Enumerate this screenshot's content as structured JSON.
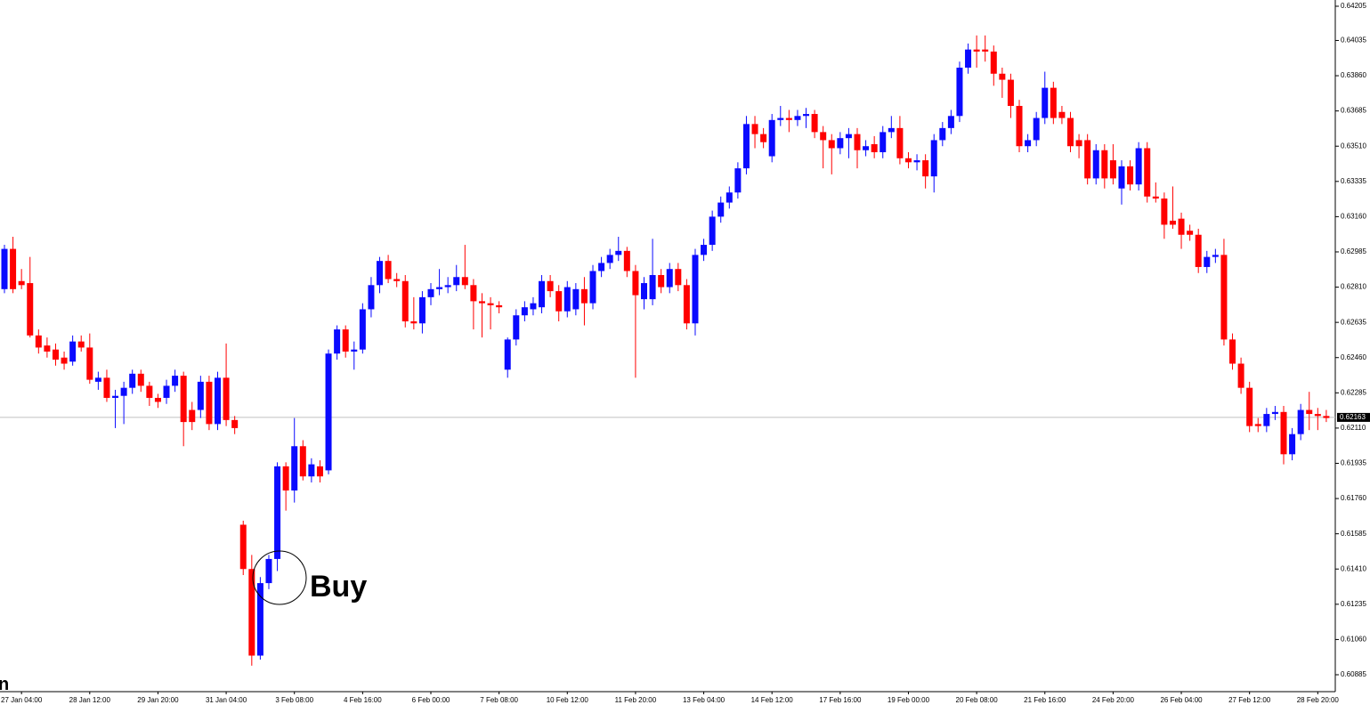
{
  "chart_data": {
    "type": "candlestick",
    "annotation": "Buy",
    "corner_text": "n",
    "bull_color": "#0a0aff",
    "bear_color": "#ff0000",
    "current_price": 0.62163,
    "ylim": [
      0.60801,
      0.64236
    ],
    "yticks": [
      0.64205,
      0.64035,
      {
        "value": 0.6386,
        "label": "0.63860"
      },
      0.63685,
      {
        "value": 0.6351,
        "label": "0.63510"
      },
      0.63335,
      {
        "value": 0.6316,
        "label": "0.63160"
      },
      0.62985,
      {
        "value": 0.6281,
        "label": "0.62810"
      },
      0.62635,
      {
        "value": 0.6246,
        "label": "0.62460"
      },
      0.62285,
      {
        "value": 0.6211,
        "label": "0.62110"
      },
      0.61935,
      {
        "value": 0.6176,
        "label": "0.61760"
      },
      0.61585,
      {
        "value": 0.6141,
        "label": "0.61410"
      },
      0.61235,
      {
        "value": 0.6106,
        "label": "0.61060"
      },
      0.60885
    ],
    "categories": [
      null,
      null,
      "27 Jan 04:00",
      null,
      null,
      null,
      null,
      null,
      null,
      null,
      "28 Jan 12:00",
      null,
      null,
      null,
      null,
      null,
      null,
      null,
      "29 Jan 20:00",
      null,
      null,
      null,
      null,
      null,
      null,
      null,
      "31 Jan 04:00",
      null,
      null,
      null,
      null,
      null,
      null,
      null,
      "3 Feb 08:00",
      null,
      null,
      null,
      null,
      null,
      null,
      null,
      "4 Feb 16:00",
      null,
      null,
      null,
      null,
      null,
      null,
      null,
      "6 Feb 00:00",
      null,
      null,
      null,
      null,
      null,
      null,
      null,
      "7 Feb 08:00",
      null,
      null,
      null,
      null,
      null,
      null,
      null,
      "10 Feb 12:00",
      null,
      null,
      null,
      null,
      null,
      null,
      null,
      "11 Feb 20:00",
      null,
      null,
      null,
      null,
      null,
      null,
      null,
      "13 Feb 04:00",
      null,
      null,
      null,
      null,
      null,
      null,
      null,
      "14 Feb 12:00",
      null,
      null,
      null,
      null,
      null,
      null,
      null,
      "17 Feb 16:00",
      null,
      null,
      null,
      null,
      null,
      null,
      null,
      "19 Feb 00:00",
      null,
      null,
      null,
      null,
      null,
      null,
      null,
      "20 Feb 08:00",
      null,
      null,
      null,
      null,
      null,
      null,
      null,
      "21 Feb 16:00",
      null,
      null,
      null,
      null,
      null,
      null,
      null,
      "24 Feb 20:00",
      null,
      null,
      null,
      null,
      null,
      null,
      null,
      "26 Feb 04:00",
      null,
      null,
      null,
      null,
      null,
      null,
      null,
      "27 Feb 12:00",
      null,
      null,
      null,
      null,
      null,
      null,
      null,
      "28 Feb 20:00",
      null
    ],
    "candles": [
      [
        0.628,
        0.6302,
        0.6278,
        0.63
      ],
      [
        0.63,
        0.6306,
        0.6278,
        0.628
      ],
      [
        0.6284,
        0.629,
        0.628,
        0.6282
      ],
      [
        0.6283,
        0.6296,
        0.6256,
        0.6257
      ],
      [
        0.6257,
        0.626,
        0.6248,
        0.6251
      ],
      [
        0.6252,
        0.6256,
        0.6246,
        0.6249
      ],
      [
        0.625,
        0.6253,
        0.6242,
        0.6245
      ],
      [
        0.6246,
        0.6249,
        0.624,
        0.6243
      ],
      [
        0.6244,
        0.6257,
        0.6242,
        0.6254
      ],
      [
        0.6254,
        0.6257,
        0.6249,
        0.6251
      ],
      [
        0.6251,
        0.6258,
        0.6233,
        0.6235
      ],
      [
        0.6234,
        0.6239,
        0.623,
        0.6236
      ],
      [
        0.6236,
        0.624,
        0.6224,
        0.6226
      ],
      [
        0.6226,
        0.623,
        0.6211,
        0.6227
      ],
      [
        0.6227,
        0.6234,
        0.6213,
        0.6231
      ],
      [
        0.6231,
        0.624,
        0.6228,
        0.6238
      ],
      [
        0.6238,
        0.624,
        0.6229,
        0.6232
      ],
      [
        0.6232,
        0.6234,
        0.6222,
        0.6226
      ],
      [
        0.6226,
        0.6228,
        0.6221,
        0.6224
      ],
      [
        0.6226,
        0.6235,
        0.6223,
        0.6232
      ],
      [
        0.6232,
        0.624,
        0.6229,
        0.6237
      ],
      [
        0.6237,
        0.6239,
        0.6202,
        0.6214
      ],
      [
        0.622,
        0.6224,
        0.621,
        0.6214
      ],
      [
        0.622,
        0.6237,
        0.6216,
        0.6234
      ],
      [
        0.6234,
        0.6237,
        0.621,
        0.6213
      ],
      [
        0.6213,
        0.6239,
        0.621,
        0.6236
      ],
      [
        0.6236,
        0.6253,
        0.6212,
        0.6215
      ],
      [
        0.6215,
        0.6217,
        0.6208,
        0.6211
      ],
      [
        0.6163,
        0.6165,
        0.6138,
        0.6141
      ],
      [
        0.6141,
        0.6148,
        0.6093,
        0.6098
      ],
      [
        0.6098,
        0.6137,
        0.6096,
        0.6134
      ],
      [
        0.6134,
        0.6148,
        0.6131,
        0.6146
      ],
      [
        0.6146,
        0.6194,
        0.614,
        0.6192
      ],
      [
        0.6192,
        0.6194,
        0.617,
        0.618
      ],
      [
        0.618,
        0.6216,
        0.6174,
        0.6202
      ],
      [
        0.6202,
        0.6205,
        0.6185,
        0.6187
      ],
      [
        0.6187,
        0.6196,
        0.6184,
        0.6193
      ],
      [
        0.6192,
        0.6195,
        0.6184,
        0.6187
      ],
      [
        0.619,
        0.625,
        0.6188,
        0.6248
      ],
      [
        0.6248,
        0.6262,
        0.6245,
        0.626
      ],
      [
        0.626,
        0.6262,
        0.6246,
        0.6249
      ],
      [
        0.6249,
        0.6254,
        0.624,
        0.625
      ],
      [
        0.625,
        0.6273,
        0.6248,
        0.627
      ],
      [
        0.627,
        0.6286,
        0.6266,
        0.6282
      ],
      [
        0.6282,
        0.6296,
        0.6278,
        0.6294
      ],
      [
        0.6294,
        0.6297,
        0.6283,
        0.6285
      ],
      [
        0.6285,
        0.6288,
        0.6281,
        0.6284
      ],
      [
        0.6284,
        0.6287,
        0.6261,
        0.6264
      ],
      [
        0.6264,
        0.6276,
        0.626,
        0.6263
      ],
      [
        0.6263,
        0.6279,
        0.6258,
        0.6276
      ],
      [
        0.6276,
        0.6283,
        0.6272,
        0.628
      ],
      [
        0.628,
        0.629,
        0.6277,
        0.6281
      ],
      [
        0.6281,
        0.6286,
        0.6278,
        0.6282
      ],
      [
        0.6282,
        0.6292,
        0.6279,
        0.6286
      ],
      [
        0.6286,
        0.6302,
        0.628,
        0.6282
      ],
      [
        0.6282,
        0.6285,
        0.626,
        0.6274
      ],
      [
        0.6274,
        0.6278,
        0.6256,
        0.6273
      ],
      [
        0.6273,
        0.6276,
        0.626,
        0.6272
      ],
      [
        0.6272,
        0.6274,
        0.6268,
        0.6271
      ],
      [
        0.624,
        0.6256,
        0.6236,
        0.6255
      ],
      [
        0.6255,
        0.627,
        0.6252,
        0.6267
      ],
      [
        0.6267,
        0.6274,
        0.6264,
        0.6271
      ],
      [
        0.627,
        0.6276,
        0.6267,
        0.6273
      ],
      [
        0.6271,
        0.6287,
        0.6268,
        0.6284
      ],
      [
        0.6284,
        0.6287,
        0.6276,
        0.6279
      ],
      [
        0.6279,
        0.6282,
        0.6264,
        0.6269
      ],
      [
        0.6269,
        0.6284,
        0.6266,
        0.6281
      ],
      [
        0.627,
        0.6283,
        0.6267,
        0.628
      ],
      [
        0.628,
        0.6286,
        0.6262,
        0.6273
      ],
      [
        0.6273,
        0.6292,
        0.627,
        0.6289
      ],
      [
        0.6289,
        0.6296,
        0.6286,
        0.6293
      ],
      [
        0.6293,
        0.63,
        0.629,
        0.6297
      ],
      [
        0.6297,
        0.6306,
        0.6294,
        0.6299
      ],
      [
        0.6299,
        0.6301,
        0.6286,
        0.6289
      ],
      [
        0.6289,
        0.6292,
        0.6236,
        0.6277
      ],
      [
        0.6275,
        0.6286,
        0.627,
        0.6283
      ],
      [
        0.6275,
        0.6305,
        0.6272,
        0.6287
      ],
      [
        0.6287,
        0.629,
        0.6278,
        0.6281
      ],
      [
        0.6281,
        0.6293,
        0.6278,
        0.629
      ],
      [
        0.629,
        0.6293,
        0.6279,
        0.6282
      ],
      [
        0.6282,
        0.6285,
        0.626,
        0.6263
      ],
      [
        0.6263,
        0.63,
        0.6257,
        0.6297
      ],
      [
        0.6297,
        0.6305,
        0.6294,
        0.6302
      ],
      [
        0.6302,
        0.6319,
        0.6299,
        0.6316
      ],
      [
        0.6316,
        0.6326,
        0.6313,
        0.6323
      ],
      [
        0.6323,
        0.6331,
        0.632,
        0.6328
      ],
      [
        0.6328,
        0.6343,
        0.6325,
        0.634
      ],
      [
        0.634,
        0.6366,
        0.6337,
        0.6362
      ],
      [
        0.6362,
        0.6366,
        0.635,
        0.6357
      ],
      [
        0.6357,
        0.636,
        0.635,
        0.6353
      ],
      [
        0.6346,
        0.6367,
        0.6343,
        0.6364
      ],
      [
        0.6364,
        0.6371,
        0.6361,
        0.6365
      ],
      [
        0.6365,
        0.6369,
        0.6358,
        0.6364
      ],
      [
        0.6364,
        0.6369,
        0.6361,
        0.6366
      ],
      [
        0.6366,
        0.637,
        0.636,
        0.6367
      ],
      [
        0.6367,
        0.6369,
        0.6355,
        0.6358
      ],
      [
        0.6358,
        0.6361,
        0.634,
        0.6354
      ],
      [
        0.6354,
        0.6357,
        0.6337,
        0.635
      ],
      [
        0.635,
        0.6358,
        0.6347,
        0.6355
      ],
      [
        0.6355,
        0.636,
        0.6345,
        0.6357
      ],
      [
        0.6357,
        0.636,
        0.634,
        0.6349
      ],
      [
        0.6349,
        0.6354,
        0.6346,
        0.6351
      ],
      [
        0.6352,
        0.6356,
        0.6345,
        0.6348
      ],
      [
        0.6348,
        0.6361,
        0.6345,
        0.6358
      ],
      [
        0.6358,
        0.6366,
        0.6355,
        0.636
      ],
      [
        0.636,
        0.6366,
        0.6342,
        0.6345
      ],
      [
        0.6345,
        0.6348,
        0.634,
        0.6343
      ],
      [
        0.6343,
        0.6347,
        0.6339,
        0.6344
      ],
      [
        0.6344,
        0.6347,
        0.633,
        0.6336
      ],
      [
        0.6336,
        0.6357,
        0.6328,
        0.6354
      ],
      [
        0.6354,
        0.6363,
        0.6351,
        0.636
      ],
      [
        0.636,
        0.6369,
        0.6357,
        0.6366
      ],
      [
        0.6366,
        0.6393,
        0.6363,
        0.639
      ],
      [
        0.639,
        0.6402,
        0.6387,
        0.6399
      ],
      [
        0.6399,
        0.6406,
        0.639,
        0.6398
      ],
      [
        0.6399,
        0.6406,
        0.6393,
        0.6398
      ],
      [
        0.6398,
        0.6401,
        0.6381,
        0.6387
      ],
      [
        0.6387,
        0.639,
        0.6375,
        0.6384
      ],
      [
        0.6384,
        0.6387,
        0.6365,
        0.6371
      ],
      [
        0.6371,
        0.6374,
        0.6348,
        0.6351
      ],
      [
        0.6351,
        0.6357,
        0.6348,
        0.6354
      ],
      [
        0.6354,
        0.6368,
        0.6351,
        0.6365
      ],
      [
        0.6365,
        0.6388,
        0.6362,
        0.638
      ],
      [
        0.638,
        0.6383,
        0.6362,
        0.6365
      ],
      [
        0.6368,
        0.6371,
        0.6362,
        0.6365
      ],
      [
        0.6365,
        0.6368,
        0.6348,
        0.6351
      ],
      [
        0.6354,
        0.6357,
        0.6345,
        0.6351
      ],
      [
        0.6354,
        0.6357,
        0.6332,
        0.6335
      ],
      [
        0.6335,
        0.6352,
        0.6332,
        0.6349
      ],
      [
        0.6349,
        0.6352,
        0.633,
        0.6335
      ],
      [
        0.6344,
        0.6352,
        0.6332,
        0.6335
      ],
      [
        0.633,
        0.6344,
        0.6322,
        0.6341
      ],
      [
        0.6341,
        0.6344,
        0.6329,
        0.6332
      ],
      [
        0.6332,
        0.6353,
        0.6329,
        0.635
      ],
      [
        0.635,
        0.6353,
        0.6323,
        0.6326
      ],
      [
        0.6326,
        0.6333,
        0.6323,
        0.6325
      ],
      [
        0.6325,
        0.6328,
        0.6305,
        0.6312
      ],
      [
        0.6314,
        0.6331,
        0.631,
        0.6312
      ],
      [
        0.6315,
        0.6318,
        0.63,
        0.6307
      ],
      [
        0.6309,
        0.6312,
        0.6304,
        0.6307
      ],
      [
        0.6307,
        0.631,
        0.6288,
        0.6291
      ],
      [
        0.6291,
        0.6299,
        0.6288,
        0.6296
      ],
      [
        0.6296,
        0.63,
        0.6293,
        0.6297
      ],
      [
        0.6297,
        0.6305,
        0.6252,
        0.6255
      ],
      [
        0.6255,
        0.6258,
        0.624,
        0.6243
      ],
      [
        0.6243,
        0.6246,
        0.6228,
        0.6231
      ],
      [
        0.6231,
        0.6234,
        0.6209,
        0.6212
      ],
      [
        0.6213,
        0.6216,
        0.6209,
        0.6212
      ],
      [
        0.6212,
        0.6221,
        0.6209,
        0.6218
      ],
      [
        0.6218,
        0.6222,
        0.6215,
        0.6219
      ],
      [
        0.6219,
        0.6222,
        0.6193,
        0.6198
      ],
      [
        0.6198,
        0.6211,
        0.6195,
        0.6208
      ],
      [
        0.6208,
        0.6223,
        0.6205,
        0.622
      ],
      [
        0.622,
        0.6229,
        0.621,
        0.6218
      ],
      [
        0.6218,
        0.6221,
        0.621,
        0.6217
      ],
      [
        0.6217,
        0.622,
        0.6214,
        0.6216
      ]
    ]
  }
}
